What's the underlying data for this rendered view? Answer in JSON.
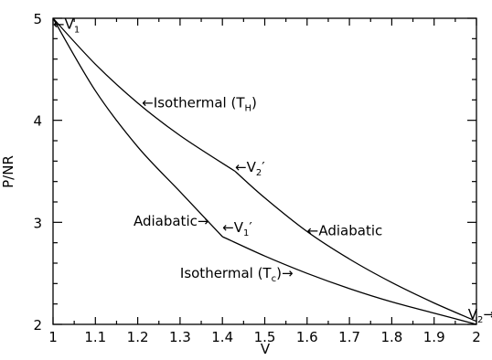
{
  "chart_data": {
    "type": "line",
    "title": "",
    "xlabel": "V",
    "ylabel": "P/NR",
    "xlim": [
      1,
      2
    ],
    "ylim": [
      2,
      5
    ],
    "grid": false,
    "x_ticks": [
      "1",
      "1.1",
      "1.2",
      "1.3",
      "1.4",
      "1.5",
      "1.6",
      "1.7",
      "1.8",
      "1.9",
      "2"
    ],
    "y_ticks": [
      "2",
      "3",
      "4",
      "5"
    ],
    "series": [
      {
        "x": [
          1.0,
          1.1,
          1.2,
          1.3,
          1.43
        ],
        "y": [
          5.0,
          4.55,
          4.17,
          3.85,
          3.5
        ]
      },
      {
        "x": [
          1.43,
          1.5,
          1.6,
          1.7,
          1.8,
          1.9,
          2.0
        ],
        "y": [
          3.5,
          3.24,
          2.91,
          2.64,
          2.41,
          2.21,
          2.03
        ]
      },
      {
        "x": [
          1.0,
          1.1,
          1.2,
          1.3,
          1.4
        ],
        "y": [
          5.0,
          4.29,
          3.74,
          3.3,
          2.86
        ]
      },
      {
        "x": [
          1.4,
          1.5,
          1.6,
          1.7,
          1.8,
          1.9,
          2.0
        ],
        "y": [
          2.86,
          2.67,
          2.5,
          2.35,
          2.22,
          2.11,
          2.0
        ]
      }
    ],
    "annotations": [
      {
        "id": "v1",
        "text": "←V",
        "sub": "1",
        "suffix": "",
        "x": 1.0,
        "y": 4.94
      },
      {
        "id": "isoH",
        "text": "←Isothermal (T",
        "sub": "H",
        "suffix": ")",
        "x": 1.21,
        "y": 4.17
      },
      {
        "id": "v2p",
        "text": "←V",
        "sub": "2",
        "suffix": "′",
        "x": 1.43,
        "y": 3.54
      },
      {
        "id": "adiaL",
        "text": "Adiabatic→",
        "sub": "",
        "suffix": "",
        "x": 1.19,
        "y": 3.01
      },
      {
        "id": "v1p",
        "text": "←V",
        "sub": "1",
        "suffix": "′",
        "x": 1.4,
        "y": 2.95
      },
      {
        "id": "adiaR",
        "text": "←Adiabatic",
        "sub": "",
        "suffix": "",
        "x": 1.6,
        "y": 2.92
      },
      {
        "id": "isoC",
        "text": "Isothermal (T",
        "sub": "c",
        "suffix": ")→",
        "x": 1.3,
        "y": 2.5
      },
      {
        "id": "v2",
        "text": "V",
        "sub": "2",
        "suffix": "→",
        "x": 1.98,
        "y": 2.1
      }
    ]
  }
}
